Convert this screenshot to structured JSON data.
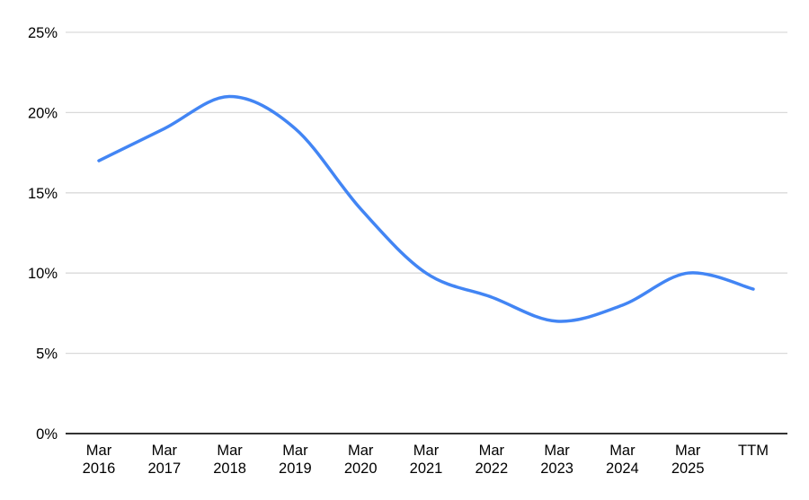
{
  "chart_data": {
    "type": "line",
    "title": "",
    "categories": [
      "Mar 2016",
      "Mar 2017",
      "Mar 2018",
      "Mar 2019",
      "Mar 2020",
      "Mar 2021",
      "Mar 2022",
      "Mar 2023",
      "Mar 2024",
      "Mar 2025",
      "TTM"
    ],
    "category_label_lines": [
      [
        "Mar",
        "2016"
      ],
      [
        "Mar",
        "2017"
      ],
      [
        "Mar",
        "2018"
      ],
      [
        "Mar",
        "2019"
      ],
      [
        "Mar",
        "2020"
      ],
      [
        "Mar",
        "2021"
      ],
      [
        "Mar",
        "2022"
      ],
      [
        "Mar",
        "2023"
      ],
      [
        "Mar",
        "2024"
      ],
      [
        "Mar",
        "2025"
      ],
      [
        "TTM"
      ]
    ],
    "values": [
      17,
      19,
      21,
      19,
      14,
      10,
      8.5,
      7,
      8,
      10,
      9
    ],
    "unit": "%",
    "ylim": [
      0,
      25
    ],
    "y_tick_step": 5,
    "y_tick_labels": [
      "0%",
      "5%",
      "10%",
      "15%",
      "20%",
      "25%"
    ],
    "grid": true,
    "legend": "none",
    "smooth": true,
    "line_color": "#4285f4",
    "grid_color": "#d9d9d9",
    "axis_color": "#333333",
    "text_color": "#000000"
  }
}
